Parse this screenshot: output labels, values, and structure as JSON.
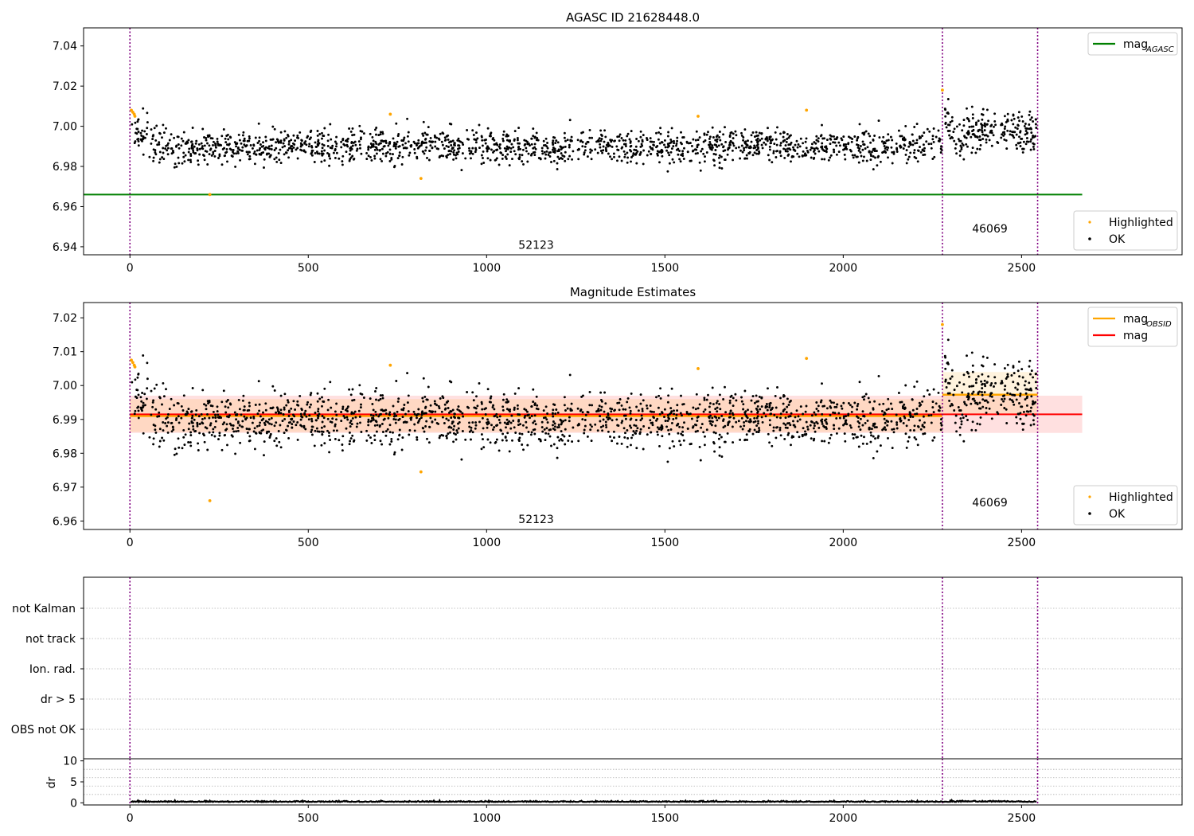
{
  "chart_data": [
    {
      "type": "scatter",
      "title": "AGASC ID 21628448.0",
      "xlim": [
        -130,
        2950
      ],
      "ylim": [
        6.936,
        7.049
      ],
      "x_ticks": [
        0,
        500,
        1000,
        1500,
        2000,
        2500
      ],
      "y_ticks": [
        6.94,
        6.96,
        6.98,
        7.0,
        7.02,
        7.04
      ],
      "y_tick_labels": [
        "6.94",
        "6.96",
        "6.98",
        "7.00",
        "7.02",
        "7.04"
      ],
      "grid": false,
      "obsid_boundaries": [
        0,
        2278,
        2545
      ],
      "obsid_labels": [
        {
          "text": "52123",
          "x": 1139,
          "y": 6.941
        },
        {
          "text": "46069",
          "x": 2411,
          "y": 6.949
        }
      ],
      "mag_agasc": {
        "value": 6.966,
        "x_range": [
          -130,
          2670
        ],
        "color": "#008000"
      },
      "series": [
        {
          "name": "Highlighted",
          "color": "#ffa500",
          "points": [
            [
              4,
              7.008
            ],
            [
              8,
              7.007
            ],
            [
              12,
              7.006
            ],
            [
              14,
              7.005
            ],
            [
              224,
              6.966
            ],
            [
              730,
              7.006
            ],
            [
              816,
              6.974
            ],
            [
              1593,
              7.005
            ],
            [
              1897,
              7.008
            ],
            [
              2278,
              7.018
            ]
          ]
        },
        {
          "name": "OK",
          "color": "#000000",
          "segments": [
            {
              "x_range": [
                0,
                2278
              ],
              "values": [
                6.999,
                6.991,
                6.988,
                6.99,
                6.989,
                6.99,
                6.991,
                6.99,
                6.989,
                6.991,
                6.99,
                6.989,
                6.99,
                6.991,
                6.99,
                6.989,
                6.99,
                6.99,
                6.991,
                6.989,
                6.99,
                6.988,
                6.989,
                6.99,
                6.992,
                6.99,
                6.989,
                6.99,
                6.991,
                6.99,
                6.99,
                6.99
              ]
            },
            {
              "x_range": [
                2278,
                2545
              ],
              "values": [
                7.008,
                6.992,
                6.996,
                6.999,
                7.0,
                6.998,
                6.997,
                6.996
              ]
            }
          ]
        }
      ],
      "legends": [
        {
          "position": "top-right",
          "entries": [
            {
              "label": "mag",
              "subscript": "AGASC",
              "kind": "line",
              "color": "#008000"
            }
          ]
        },
        {
          "position": "lower-right",
          "entries": [
            {
              "label": "Highlighted",
              "kind": "dot",
              "color": "#ffa500"
            },
            {
              "label": "OK",
              "kind": "dot",
              "color": "#000000"
            }
          ]
        }
      ]
    },
    {
      "type": "scatter",
      "title": "Magnitude Estimates",
      "xlim": [
        -130,
        2950
      ],
      "ylim": [
        6.9575,
        7.0245
      ],
      "x_ticks": [
        0,
        500,
        1000,
        1500,
        2000,
        2500
      ],
      "y_ticks": [
        6.96,
        6.97,
        6.98,
        6.99,
        7.0,
        7.01,
        7.02
      ],
      "y_tick_labels": [
        "6.96",
        "6.97",
        "6.98",
        "6.99",
        "7.00",
        "7.01",
        "7.02"
      ],
      "grid": false,
      "obsid_boundaries": [
        0,
        2278,
        2545
      ],
      "obsid_labels": [
        {
          "text": "52123",
          "x": 1139,
          "y": 6.9605
        },
        {
          "text": "46069",
          "x": 2411,
          "y": 6.9655
        }
      ],
      "mag": {
        "value": 6.9915,
        "band": [
          6.986,
          6.997
        ],
        "x_range": [
          0,
          2670
        ],
        "color": "#ff0000"
      },
      "mag_obsid": [
        {
          "x_range": [
            0,
            2278
          ],
          "value": 6.991,
          "band": [
            6.9863,
            6.996
          ]
        },
        {
          "x_range": [
            2278,
            2545
          ],
          "value": 6.9973,
          "band": [
            6.9912,
            7.004
          ]
        }
      ],
      "series": [
        {
          "name": "Highlighted",
          "color": "#ffa500",
          "points": [
            [
              4,
              7.0075
            ],
            [
              8,
              7.0068
            ],
            [
              12,
              7.006
            ],
            [
              14,
              7.0055
            ],
            [
              224,
              6.966
            ],
            [
              730,
              7.006
            ],
            [
              816,
              6.9745
            ],
            [
              1593,
              7.005
            ],
            [
              1897,
              7.008
            ],
            [
              2278,
              7.018
            ]
          ]
        },
        {
          "name": "OK",
          "color": "#000000",
          "segments": [
            {
              "x_range": [
                0,
                2278
              ],
              "values": [
                6.999,
                6.991,
                6.988,
                6.99,
                6.989,
                6.99,
                6.991,
                6.99,
                6.989,
                6.991,
                6.99,
                6.989,
                6.99,
                6.991,
                6.99,
                6.989,
                6.99,
                6.99,
                6.991,
                6.989,
                6.99,
                6.988,
                6.989,
                6.99,
                6.992,
                6.99,
                6.989,
                6.99,
                6.991,
                6.99,
                6.99,
                6.99
              ]
            },
            {
              "x_range": [
                2278,
                2545
              ],
              "values": [
                7.008,
                6.992,
                6.996,
                6.999,
                7.0,
                6.998,
                6.997,
                6.996
              ]
            }
          ]
        }
      ],
      "legends": [
        {
          "position": "top-right",
          "entries": [
            {
              "label": "mag",
              "subscript": "OBSID",
              "kind": "line",
              "color": "#ffa500"
            },
            {
              "label": "mag",
              "kind": "line",
              "color": "#ff0000"
            }
          ]
        },
        {
          "position": "lower-right",
          "entries": [
            {
              "label": "Highlighted",
              "kind": "dot",
              "color": "#ffa500"
            },
            {
              "label": "OK",
              "kind": "dot",
              "color": "#000000"
            }
          ]
        }
      ]
    },
    {
      "type": "scatter",
      "title": "",
      "xlim": [
        -130,
        2950
      ],
      "categories": [
        "OBS not OK",
        "dr > 5",
        "Ion. rad.",
        "not track",
        "not Kalman"
      ],
      "grid": true,
      "obsid_boundaries": [
        0,
        2278,
        2545
      ],
      "series": []
    },
    {
      "type": "line",
      "title": "",
      "ylabel": "dr",
      "xlim": [
        -130,
        2950
      ],
      "ylim": [
        -0.5,
        10.5
      ],
      "x_ticks": [
        0,
        500,
        1000,
        1500,
        2000,
        2500
      ],
      "y_ticks": [
        0,
        5,
        10
      ],
      "y_tick_labels": [
        "0",
        "5",
        "10"
      ],
      "grid": true,
      "obsid_boundaries": [
        0,
        2278,
        2545
      ],
      "series": [
        {
          "name": "dr",
          "color": "#000000",
          "typical_value": 0.2,
          "max_value": 0.5
        }
      ]
    }
  ]
}
